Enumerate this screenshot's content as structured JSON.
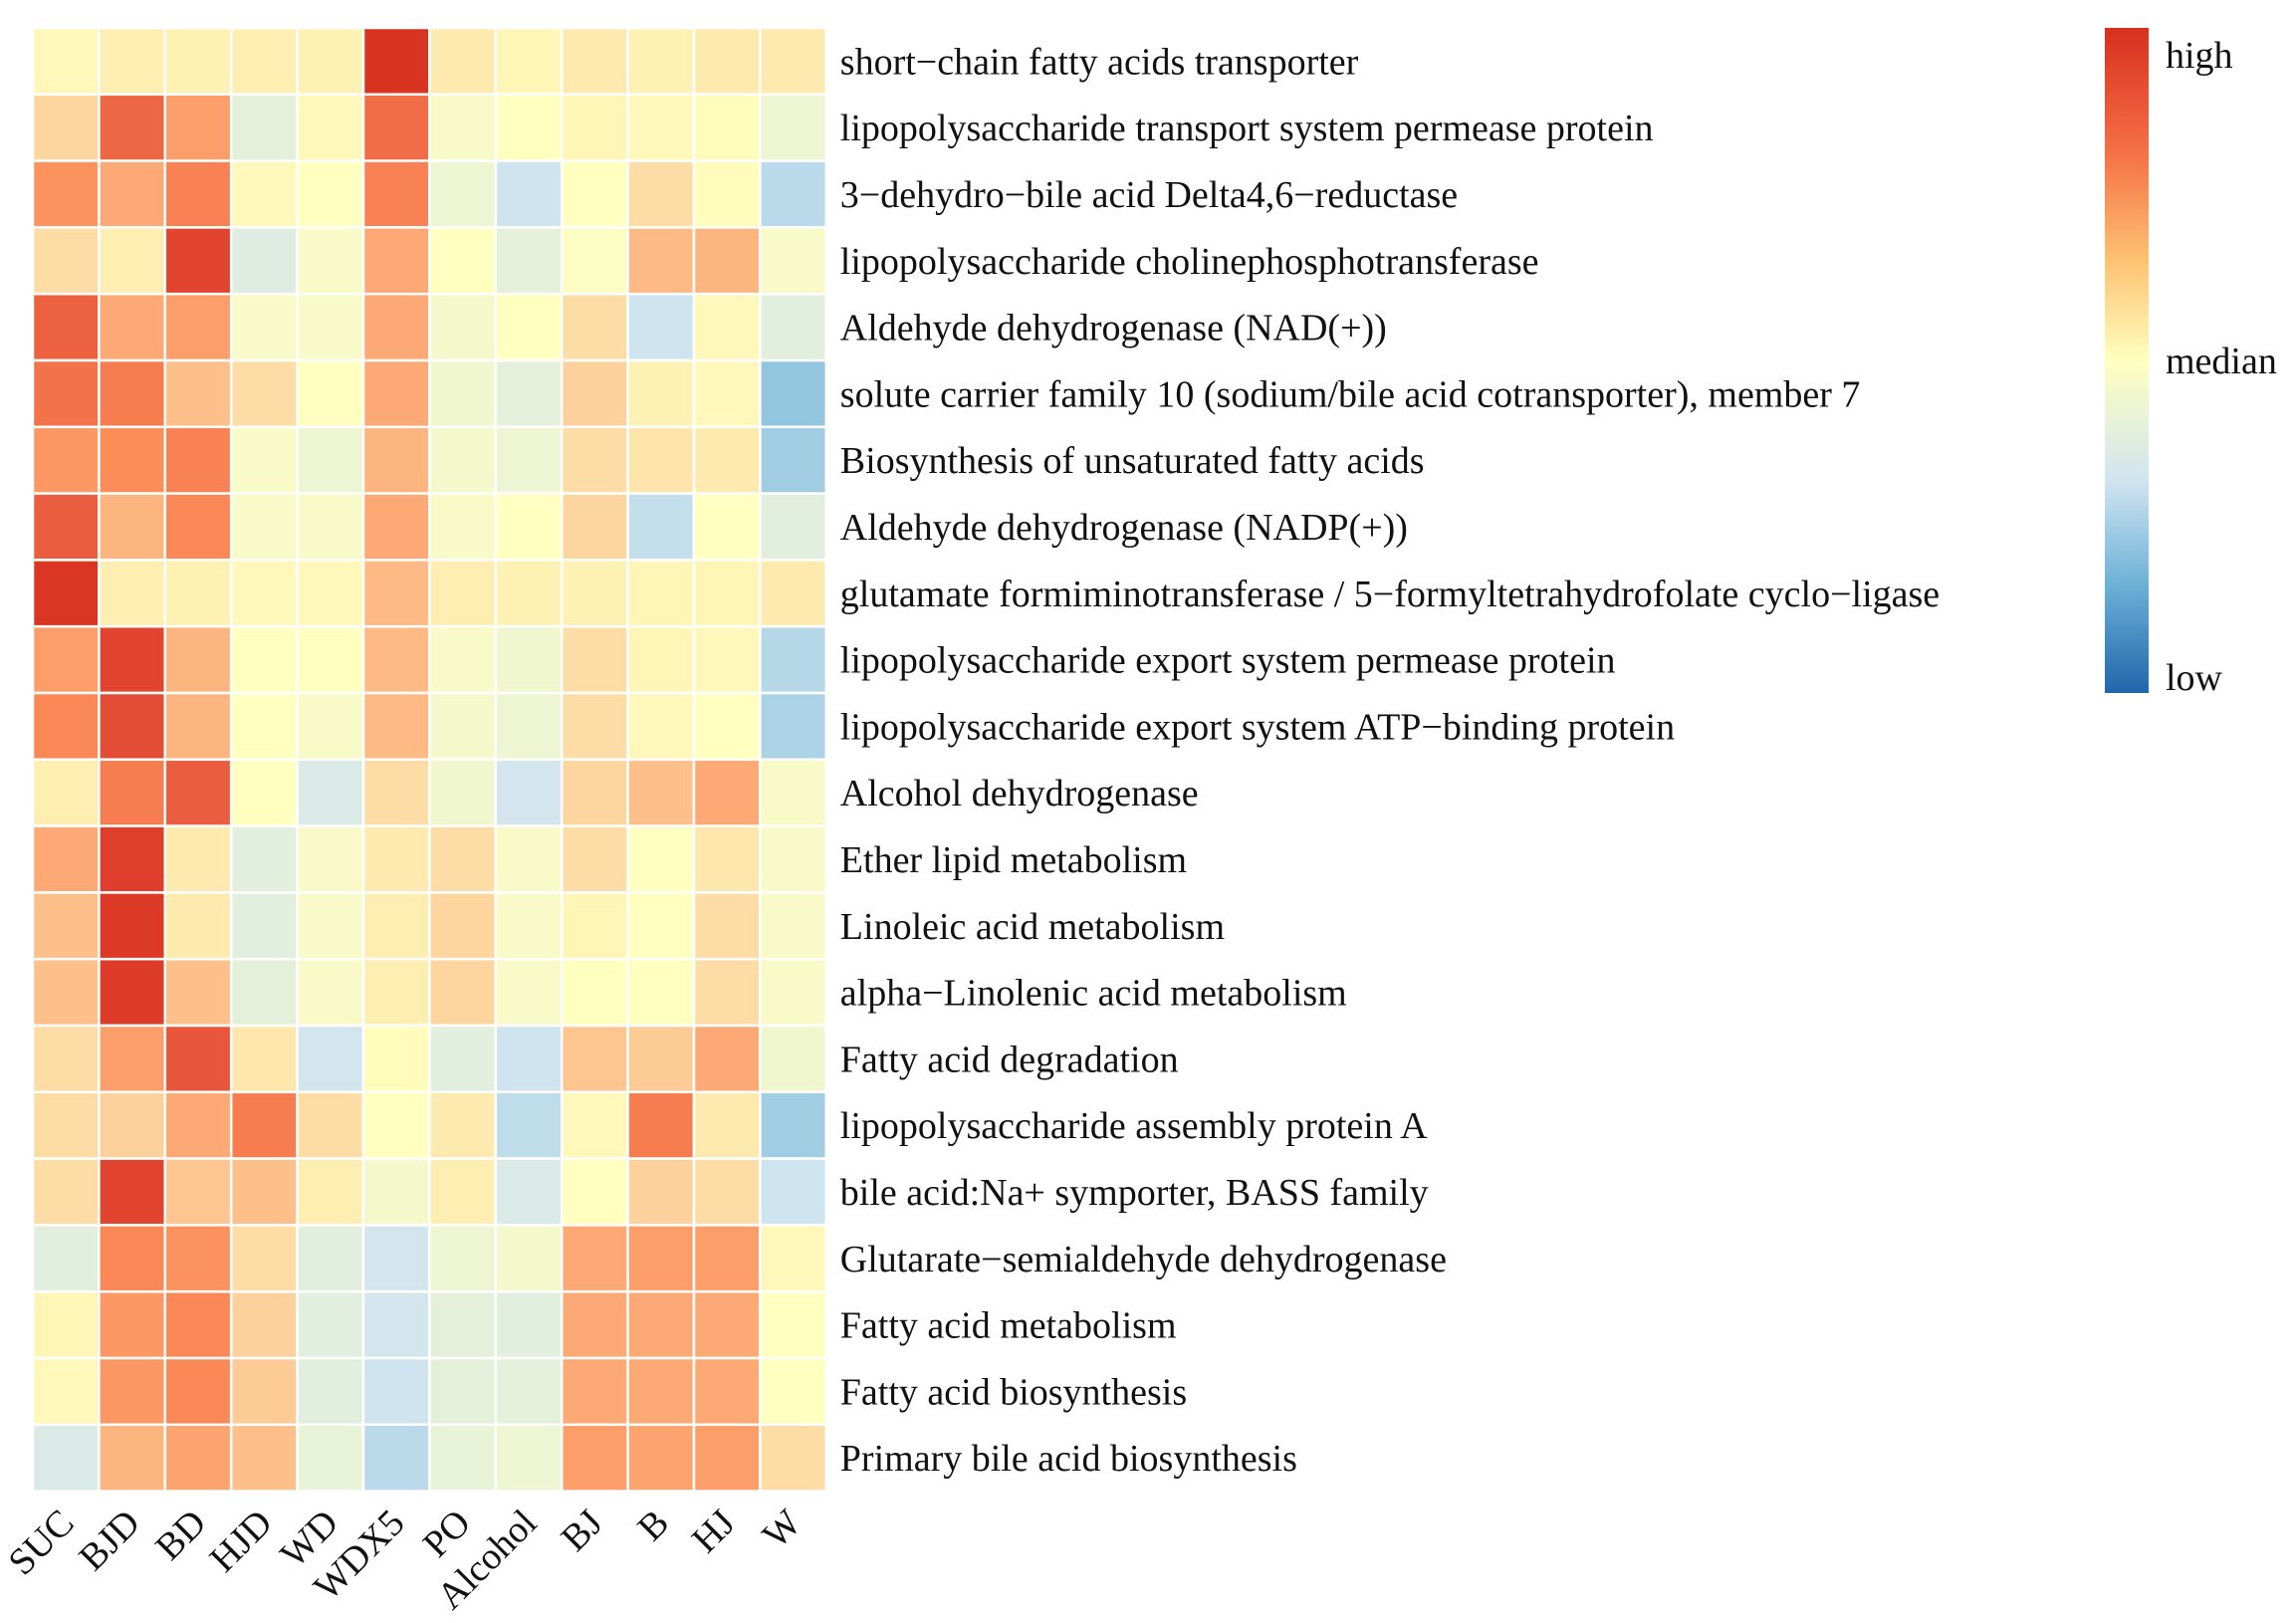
{
  "chart_data": {
    "type": "heatmap",
    "columns": [
      "SUC",
      "BJD",
      "BD",
      "HJD",
      "WD",
      "WDX5",
      "PO",
      "Alcohol",
      "BJ",
      "B",
      "HJ",
      "W"
    ],
    "rows": [
      {
        "label": "short−chain fatty acids transporter",
        "values": [
          0.52,
          0.55,
          0.54,
          0.55,
          0.54,
          0.98,
          0.56,
          0.53,
          0.56,
          0.54,
          0.56,
          0.56
        ]
      },
      {
        "label": "lipopolysaccharide transport system permease protein",
        "values": [
          0.62,
          0.82,
          0.72,
          0.43,
          0.52,
          0.81,
          0.48,
          0.5,
          0.53,
          0.52,
          0.51,
          0.45
        ]
      },
      {
        "label": "3−dehydro−bile acid Delta4,6−reductase",
        "values": [
          0.74,
          0.7,
          0.77,
          0.52,
          0.5,
          0.77,
          0.45,
          0.37,
          0.5,
          0.6,
          0.51,
          0.33
        ]
      },
      {
        "label": "lipopolysaccharide cholinephosphotransferase",
        "values": [
          0.6,
          0.55,
          0.9,
          0.41,
          0.48,
          0.7,
          0.5,
          0.43,
          0.49,
          0.67,
          0.68,
          0.48
        ]
      },
      {
        "label": "Aldehyde dehydrogenase (NAD(+))",
        "values": [
          0.83,
          0.7,
          0.72,
          0.48,
          0.48,
          0.7,
          0.47,
          0.5,
          0.6,
          0.37,
          0.52,
          0.42
        ]
      },
      {
        "label": "solute carrier family 10 (sodium/bile acid cotransporter), member 7",
        "values": [
          0.8,
          0.78,
          0.66,
          0.6,
          0.5,
          0.7,
          0.46,
          0.43,
          0.63,
          0.54,
          0.52,
          0.25
        ]
      },
      {
        "label": "Biosynthesis of unsaturated fatty acids",
        "values": [
          0.73,
          0.75,
          0.77,
          0.48,
          0.45,
          0.68,
          0.47,
          0.45,
          0.6,
          0.58,
          0.56,
          0.28
        ]
      },
      {
        "label": "Aldehyde dehydrogenase (NADP(+))",
        "values": [
          0.84,
          0.68,
          0.76,
          0.48,
          0.48,
          0.7,
          0.48,
          0.5,
          0.62,
          0.35,
          0.5,
          0.42
        ]
      },
      {
        "label": "glutamate formiminotransferase / 5−formyltetrahydrofolate cyclo−ligase",
        "values": [
          0.97,
          0.55,
          0.54,
          0.52,
          0.52,
          0.67,
          0.55,
          0.54,
          0.54,
          0.53,
          0.53,
          0.56
        ]
      },
      {
        "label": "lipopolysaccharide export system permease protein",
        "values": [
          0.72,
          0.9,
          0.68,
          0.5,
          0.5,
          0.67,
          0.48,
          0.46,
          0.6,
          0.53,
          0.52,
          0.32
        ]
      },
      {
        "label": "lipopolysaccharide export system ATP−binding protein",
        "values": [
          0.76,
          0.87,
          0.68,
          0.5,
          0.48,
          0.67,
          0.47,
          0.45,
          0.6,
          0.52,
          0.5,
          0.3
        ]
      },
      {
        "label": "Alcohol dehydrogenase",
        "values": [
          0.55,
          0.78,
          0.84,
          0.5,
          0.4,
          0.6,
          0.46,
          0.38,
          0.62,
          0.66,
          0.7,
          0.48
        ]
      },
      {
        "label": "Ether lipid metabolism",
        "values": [
          0.7,
          0.93,
          0.56,
          0.42,
          0.48,
          0.56,
          0.6,
          0.48,
          0.6,
          0.5,
          0.57,
          0.48
        ]
      },
      {
        "label": "Linoleic acid metabolism",
        "values": [
          0.66,
          0.95,
          0.56,
          0.42,
          0.48,
          0.55,
          0.62,
          0.48,
          0.53,
          0.5,
          0.6,
          0.48
        ]
      },
      {
        "label": "alpha−Linolenic acid metabolism",
        "values": [
          0.66,
          0.94,
          0.66,
          0.43,
          0.48,
          0.55,
          0.62,
          0.48,
          0.5,
          0.5,
          0.6,
          0.48
        ]
      },
      {
        "label": "Fatty acid degradation",
        "values": [
          0.6,
          0.72,
          0.85,
          0.57,
          0.38,
          0.51,
          0.42,
          0.37,
          0.65,
          0.64,
          0.7,
          0.46
        ]
      },
      {
        "label": "lipopolysaccharide assembly protein A",
        "values": [
          0.6,
          0.63,
          0.7,
          0.78,
          0.6,
          0.5,
          0.56,
          0.34,
          0.52,
          0.78,
          0.56,
          0.28
        ]
      },
      {
        "label": "bile acid:Na+ symporter, BASS family",
        "values": [
          0.6,
          0.9,
          0.65,
          0.66,
          0.55,
          0.47,
          0.55,
          0.4,
          0.5,
          0.63,
          0.6,
          0.37
        ]
      },
      {
        "label": "Glutarate−semialdehyde dehydrogenase",
        "values": [
          0.42,
          0.76,
          0.74,
          0.6,
          0.42,
          0.38,
          0.45,
          0.47,
          0.7,
          0.72,
          0.72,
          0.52
        ]
      },
      {
        "label": "Fatty acid metabolism",
        "values": [
          0.53,
          0.73,
          0.76,
          0.63,
          0.42,
          0.38,
          0.43,
          0.42,
          0.7,
          0.7,
          0.7,
          0.5
        ]
      },
      {
        "label": "Fatty acid biosynthesis",
        "values": [
          0.52,
          0.73,
          0.76,
          0.64,
          0.42,
          0.37,
          0.43,
          0.43,
          0.7,
          0.7,
          0.7,
          0.5
        ]
      },
      {
        "label": "Primary bile acid biosynthesis",
        "values": [
          0.4,
          0.68,
          0.71,
          0.66,
          0.44,
          0.33,
          0.44,
          0.45,
          0.72,
          0.71,
          0.72,
          0.6
        ]
      }
    ],
    "value_scale": "relative 0 (low) to 1 (high)",
    "colorscale": [
      "#2166ac",
      "#4393c3",
      "#92c5de",
      "#d1e5f0",
      "#ffffbf",
      "#fdd49e",
      "#fc8d59",
      "#e34a33",
      "#d7301f"
    ],
    "legend": {
      "labels": [
        "high",
        "median",
        "low"
      ],
      "position": "top-right"
    }
  }
}
